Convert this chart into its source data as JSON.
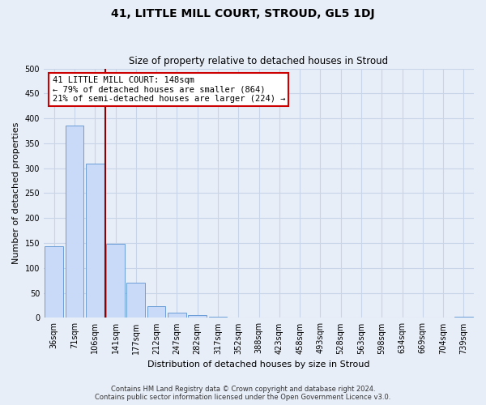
{
  "title": "41, LITTLE MILL COURT, STROUD, GL5 1DJ",
  "subtitle": "Size of property relative to detached houses in Stroud",
  "xlabel": "Distribution of detached houses by size in Stroud",
  "ylabel": "Number of detached properties",
  "bar_labels": [
    "36sqm",
    "71sqm",
    "106sqm",
    "141sqm",
    "177sqm",
    "212sqm",
    "247sqm",
    "282sqm",
    "317sqm",
    "352sqm",
    "388sqm",
    "423sqm",
    "458sqm",
    "493sqm",
    "528sqm",
    "563sqm",
    "598sqm",
    "634sqm",
    "669sqm",
    "704sqm",
    "739sqm"
  ],
  "bar_values": [
    143,
    385,
    309,
    148,
    70,
    24,
    10,
    5,
    3,
    0,
    0,
    0,
    0,
    0,
    0,
    0,
    0,
    0,
    0,
    0,
    2
  ],
  "bar_face_color": "#c9daf8",
  "bar_edge_color": "#6b9dd6",
  "vline_color": "#8b0000",
  "vline_x_index": 3,
  "annotation_title": "41 LITTLE MILL COURT: 148sqm",
  "annotation_line1": "← 79% of detached houses are smaller (864)",
  "annotation_line2": "21% of semi-detached houses are larger (224) →",
  "annotation_box_facecolor": "#ffffff",
  "annotation_box_edgecolor": "#cc0000",
  "footer_line1": "Contains HM Land Registry data © Crown copyright and database right 2024.",
  "footer_line2": "Contains public sector information licensed under the Open Government Licence v3.0.",
  "ylim": [
    0,
    500
  ],
  "yticks": [
    0,
    50,
    100,
    150,
    200,
    250,
    300,
    350,
    400,
    450,
    500
  ],
  "grid_color": "#c8d4e8",
  "background_color": "#e8eef8",
  "title_fontsize": 10,
  "subtitle_fontsize": 8.5,
  "axis_label_fontsize": 8,
  "tick_fontsize": 7,
  "footer_fontsize": 6
}
